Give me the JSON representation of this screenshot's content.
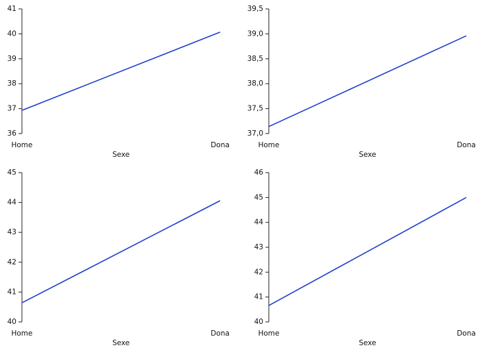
{
  "chart_data": [
    {
      "type": "line",
      "categories": [
        "Home",
        "Dona"
      ],
      "x_label": "Sexe",
      "values": [
        36.93,
        40.07
      ],
      "color": "#1f3fcc",
      "ylim": [
        36,
        41
      ],
      "yticks": [
        36,
        37,
        38,
        39,
        40,
        41
      ]
    },
    {
      "type": "line",
      "categories": [
        "Home",
        "Dona"
      ],
      "x_label": "Sexe",
      "values": [
        37.14,
        38.96
      ],
      "color": "#1f3fcc",
      "ylim": [
        37,
        39.5
      ],
      "yticks": [
        {
          "value": 37,
          "label": "37,0"
        },
        {
          "value": 37.5,
          "label": "37,5"
        },
        {
          "value": 38,
          "label": "38,0"
        },
        {
          "value": 38.5,
          "label": "38,5"
        },
        {
          "value": 39,
          "label": "39,0"
        },
        {
          "value": 39.5,
          "label": "39,5"
        }
      ]
    },
    {
      "type": "line",
      "categories": [
        "Home",
        "Dona"
      ],
      "x_label": "Sexe",
      "values": [
        40.64,
        44.06
      ],
      "color": "#1f3fcc",
      "ylim": [
        40,
        45
      ],
      "yticks": [
        40,
        41,
        42,
        43,
        44,
        45
      ]
    },
    {
      "type": "line",
      "categories": [
        "Home",
        "Dona"
      ],
      "x_label": "Sexe",
      "values": [
        40.66,
        45.0
      ],
      "color": "#1f3fcc",
      "ylim": [
        40,
        46
      ],
      "yticks": [
        40,
        41,
        42,
        43,
        44,
        45,
        46
      ]
    }
  ]
}
